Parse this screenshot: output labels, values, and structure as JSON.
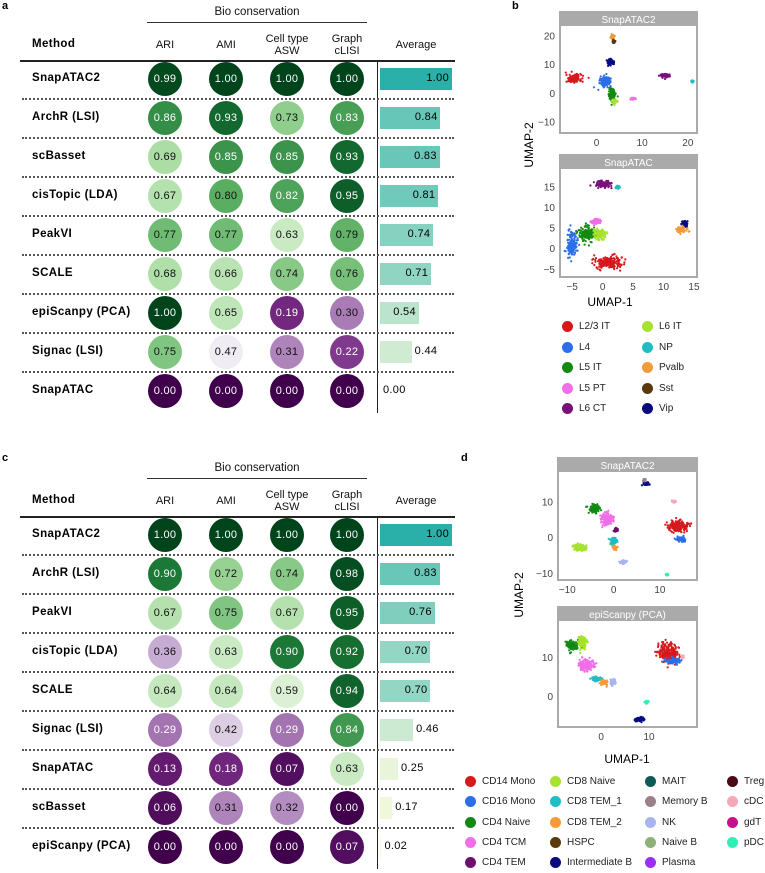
{
  "chart_data": [
    {
      "panel": "a",
      "type": "table",
      "group_header": "Bio conservation",
      "columns": [
        "Method",
        "ARI",
        "AMI",
        "Cell type  ASW",
        "Graph cLISI",
        "Average"
      ],
      "rows": [
        {
          "method": "SnapATAC2",
          "values": [
            0.99,
            1.0,
            1.0,
            1.0
          ],
          "average": 1.0
        },
        {
          "method": "ArchR (LSI)",
          "values": [
            0.86,
            0.93,
            0.73,
            0.83
          ],
          "average": 0.84
        },
        {
          "method": "scBasset",
          "values": [
            0.69,
            0.85,
            0.85,
            0.93
          ],
          "average": 0.83
        },
        {
          "method": "cisTopic (LDA)",
          "values": [
            0.67,
            0.8,
            0.82,
            0.95
          ],
          "average": 0.81
        },
        {
          "method": "PeakVI",
          "values": [
            0.77,
            0.77,
            0.63,
            0.79
          ],
          "average": 0.74
        },
        {
          "method": "SCALE",
          "values": [
            0.68,
            0.66,
            0.74,
            0.76
          ],
          "average": 0.71
        },
        {
          "method": "epiScanpy (PCA)",
          "values": [
            1.0,
            0.65,
            0.19,
            0.3
          ],
          "average": 0.54
        },
        {
          "method": "Signac (LSI)",
          "values": [
            0.75,
            0.47,
            0.31,
            0.22
          ],
          "average": 0.44
        },
        {
          "method": "SnapATAC",
          "values": [
            0.0,
            0.0,
            0.0,
            0.0
          ],
          "average": 0.0
        }
      ]
    },
    {
      "panel": "c",
      "type": "table",
      "group_header": "Bio conservation",
      "columns": [
        "Method",
        "ARI",
        "AMI",
        "Cell type  ASW",
        "Graph cLISI",
        "Average"
      ],
      "rows": [
        {
          "method": "SnapATAC2",
          "values": [
            1.0,
            1.0,
            1.0,
            1.0
          ],
          "average": 1.0
        },
        {
          "method": "ArchR (LSI)",
          "values": [
            0.9,
            0.72,
            0.74,
            0.98
          ],
          "average": 0.83
        },
        {
          "method": "PeakVI",
          "values": [
            0.67,
            0.75,
            0.67,
            0.95
          ],
          "average": 0.76
        },
        {
          "method": "cisTopic (LDA)",
          "values": [
            0.36,
            0.63,
            0.9,
            0.92
          ],
          "average": 0.7
        },
        {
          "method": "SCALE",
          "values": [
            0.64,
            0.64,
            0.59,
            0.94
          ],
          "average": 0.7
        },
        {
          "method": "Signac (LSI)",
          "values": [
            0.29,
            0.42,
            0.29,
            0.84
          ],
          "average": 0.46
        },
        {
          "method": "SnapATAC",
          "values": [
            0.13,
            0.18,
            0.07,
            0.63
          ],
          "average": 0.25
        },
        {
          "method": "scBasset",
          "values": [
            0.06,
            0.31,
            0.32,
            0.0
          ],
          "average": 0.17
        },
        {
          "method": "epiScanpy (PCA)",
          "values": [
            0.0,
            0.0,
            0.0,
            0.07
          ],
          "average": 0.02
        }
      ]
    },
    {
      "panel": "b",
      "type": "scatter",
      "xlabel": "UMAP-1",
      "ylabel": "UMAP-2",
      "plots": [
        {
          "title": "SnapATAC2",
          "xlim": [
            -8,
            22
          ],
          "ylim": [
            -14,
            23
          ],
          "xticks": [
            0,
            10,
            20
          ],
          "yticks": [
            -10,
            0,
            10,
            20
          ],
          "clusters": [
            [
              "L2/3 IT",
              -5,
              5,
              1.4,
              1.2
            ],
            [
              "L4",
              2,
              4,
              1,
              1.4
            ],
            [
              "L5 IT",
              3.5,
              -1,
              0.6,
              2
            ],
            [
              "L6 IT",
              4,
              -3,
              0.5,
              0.5
            ],
            [
              "L6 CT",
              15,
              6,
              0.9,
              0.6
            ],
            [
              "Vip",
              3,
              11,
              0.6,
              1
            ],
            [
              "Pvalb",
              3.5,
              19.5,
              0.3,
              0.6
            ],
            [
              "Sst",
              3.8,
              18,
              0.2,
              0.4
            ],
            [
              "L5 PT",
              8,
              -2,
              0.4,
              0.3
            ],
            [
              "NP",
              21,
              4,
              0.2,
              0.3
            ]
          ]
        },
        {
          "title": "SnapATAC",
          "xlim": [
            -7,
            15.5
          ],
          "ylim": [
            -7,
            19
          ],
          "xticks": [
            -5,
            0,
            5,
            10,
            15
          ],
          "yticks": [
            -5,
            0,
            5,
            10,
            15
          ],
          "clusters": [
            [
              "L2/3 IT",
              1,
              -3.5,
              2,
              1.2
            ],
            [
              "L4",
              -5,
              1,
              0.7,
              2.5
            ],
            [
              "L5 IT",
              -2.5,
              3.5,
              1.2,
              1.5
            ],
            [
              "L6 IT",
              -0.5,
              3.5,
              0.8,
              1.2
            ],
            [
              "L6 CT",
              0,
              15.5,
              1.3,
              0.7
            ],
            [
              "L5 PT",
              -1,
              6.5,
              0.8,
              0.5
            ],
            [
              "Vip",
              13.5,
              6,
              0.4,
              0.6
            ],
            [
              "Pvalb",
              13,
              4.5,
              0.7,
              0.6
            ],
            [
              "NP",
              2.5,
              14.8,
              0.3,
              0.3
            ]
          ]
        }
      ],
      "legend": [
        "L2/3 IT",
        "L4",
        "L5 IT",
        "L5 PT",
        "L6 CT",
        "L6 IT",
        "NP",
        "Pvalb",
        "Sst",
        "Vip"
      ],
      "colors": {
        "L2/3 IT": "#d7191c",
        "L4": "#2b6ee8",
        "L5 IT": "#128a12",
        "L5 PT": "#f06ee8",
        "L6 CT": "#7a0f7a",
        "L6 IT": "#a6e22e",
        "NP": "#21bcc4",
        "Pvalb": "#f59a38",
        "Sst": "#5a3a0a",
        "Vip": "#0a0a80"
      }
    },
    {
      "panel": "d",
      "type": "scatter",
      "xlabel": "UMAP-1",
      "ylabel": "UMAP-2",
      "plots": [
        {
          "title": "SnapATAC2",
          "xlim": [
            -12,
            18
          ],
          "ylim": [
            -12,
            18
          ],
          "xticks": [
            -10,
            0,
            10
          ],
          "yticks": [
            -10,
            0,
            10
          ],
          "clusters": [
            [
              "CD14 Mono",
              14,
              3,
              1.8,
              1.2
            ],
            [
              "CD16 Mono",
              14.5,
              -0.5,
              0.8,
              0.6
            ],
            [
              "CD4 Naive",
              -4,
              8,
              1,
              1
            ],
            [
              "CD4 TCM",
              -1.5,
              5,
              1.1,
              1.4
            ],
            [
              "CD4 TEM",
              0.5,
              2,
              0.3,
              0.4
            ],
            [
              "CD8 Naive",
              -7.5,
              -3,
              1.2,
              0.8
            ],
            [
              "CD8 TEM_1",
              0,
              -1,
              0.6,
              0.8
            ],
            [
              "CD8 TEM_2",
              0.3,
              -3,
              0.4,
              0.6
            ],
            [
              "NK",
              2,
              -7,
              0.5,
              0.4
            ],
            [
              "Intermediate B",
              7,
              15,
              0.5,
              0.4
            ],
            [
              "Memory B",
              6.6,
              16,
              0.2,
              0.3
            ],
            [
              "cDC",
              13,
              10,
              0.4,
              0.3
            ],
            [
              "pDC",
              11.5,
              -10.5,
              0.2,
              0.2
            ]
          ]
        },
        {
          "title": "epiScanpy (PCA)",
          "xlim": [
            -9,
            20
          ],
          "ylim": [
            -8,
            19
          ],
          "xticks": [
            0,
            10
          ],
          "yticks": [
            0,
            10
          ],
          "clusters": [
            [
              "CD14 Mono",
              14,
              11,
              1.6,
              2
            ],
            [
              "CD16 Mono",
              15,
              9,
              1.2,
              0.6
            ],
            [
              "CD4 Naive",
              -6,
              13,
              1,
              1
            ],
            [
              "CD8 Naive",
              -4,
              14,
              0.7,
              1.4
            ],
            [
              "CD4 TCM",
              -3,
              8,
              1.5,
              1.3
            ],
            [
              "CD8 TEM_1",
              -1,
              4.3,
              1,
              0.5
            ],
            [
              "CD8 TEM_2",
              0.5,
              3.5,
              0.6,
              0.5
            ],
            [
              "NK",
              2.5,
              3.5,
              0.4,
              0.6
            ],
            [
              "Intermediate B",
              8,
              -6,
              0.8,
              0.5
            ],
            [
              "pDC",
              9.5,
              -1.5,
              0.3,
              0.3
            ],
            [
              "cDC",
              17,
              10,
              0.2,
              0.3
            ]
          ]
        }
      ],
      "legend": [
        "CD14 Mono",
        "CD16 Mono",
        "CD4 Naive",
        "CD4 TCM",
        "CD4 TEM",
        "CD8 Naive",
        "CD8 TEM_1",
        "CD8 TEM_2",
        "HSPC",
        "Intermediate B",
        "MAIT",
        "Memory B",
        "NK",
        "Naive B",
        "Plasma",
        "Treg",
        "cDC",
        "gdT",
        "pDC"
      ],
      "colors": {
        "CD14 Mono": "#d7191c",
        "CD16 Mono": "#2b6ee8",
        "CD4 Naive": "#128a12",
        "CD4 TCM": "#f06ee8",
        "CD4 TEM": "#6e0f6e",
        "CD8 Naive": "#a6e22e",
        "CD8 TEM_1": "#21bcc4",
        "CD8 TEM_2": "#f59a38",
        "HSPC": "#5a3a0a",
        "Intermediate B": "#0a0a80",
        "MAIT": "#0e5a55",
        "Memory B": "#9a8088",
        "NK": "#a8b4f0",
        "Naive B": "#8fb07a",
        "Plasma": "#9b30f0",
        "Treg": "#4a0a14",
        "cDC": "#f4a8b8",
        "gdT": "#c8108c",
        "pDC": "#2ef0b4"
      }
    }
  ],
  "panel_labels": {
    "a": "a",
    "b": "b",
    "c": "c",
    "d": "d"
  },
  "colors": {
    "avg_top": "#2ab0a8",
    "avg_low": "#f6fadc"
  }
}
